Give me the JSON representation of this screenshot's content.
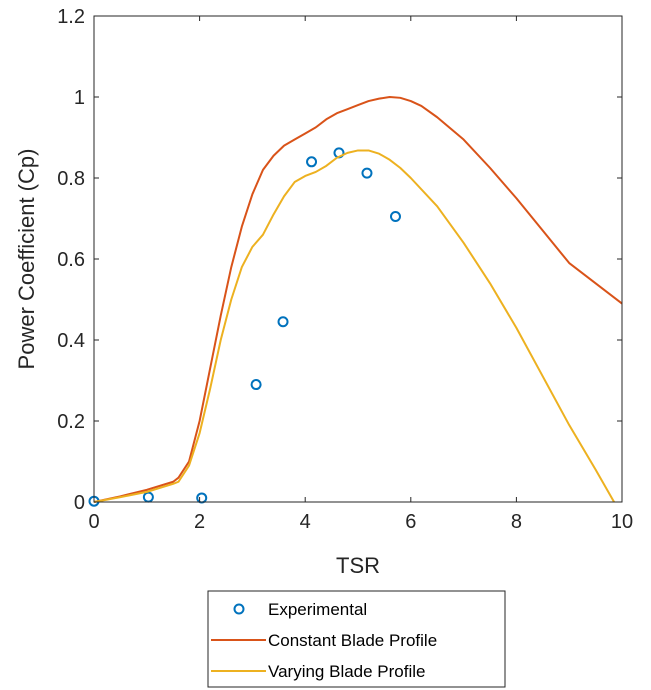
{
  "chart_data": {
    "type": "line",
    "xlabel": "TSR",
    "ylabel": "Power Coefficient (Cp)",
    "xlim": [
      0,
      10
    ],
    "ylim": [
      0,
      1.2
    ],
    "xticks": [
      "0",
      "2",
      "4",
      "6",
      "8",
      "10"
    ],
    "yticks": [
      "0",
      "0.2",
      "0.4",
      "0.6",
      "0.8",
      "1",
      "1.2"
    ],
    "grid": false,
    "legend_position": "bottom-outside",
    "series": [
      {
        "name": "Experimental",
        "style": "markers",
        "color": "#0072BD",
        "x": [
          0,
          1.03,
          2.04,
          3.07,
          3.58,
          4.12,
          4.64,
          5.17,
          5.71
        ],
        "y": [
          0.002,
          0.012,
          0.01,
          0.29,
          0.445,
          0.84,
          0.862,
          0.812,
          0.705
        ]
      },
      {
        "name": "Constant Blade Profile",
        "style": "line",
        "color": "#D95319",
        "x": [
          0,
          0.5,
          1.0,
          1.5,
          1.6,
          1.8,
          2.0,
          2.2,
          2.4,
          2.6,
          2.8,
          3.0,
          3.2,
          3.4,
          3.6,
          3.8,
          4.0,
          4.2,
          4.4,
          4.6,
          4.8,
          5.0,
          5.2,
          5.4,
          5.6,
          5.8,
          6.0,
          6.2,
          6.5,
          7.0,
          7.5,
          8.0,
          8.5,
          9.0,
          9.5,
          10.0
        ],
        "y": [
          0,
          0.014,
          0.03,
          0.05,
          0.06,
          0.1,
          0.2,
          0.33,
          0.46,
          0.58,
          0.68,
          0.76,
          0.82,
          0.855,
          0.88,
          0.895,
          0.91,
          0.925,
          0.945,
          0.96,
          0.97,
          0.98,
          0.99,
          0.996,
          1.0,
          0.998,
          0.99,
          0.978,
          0.95,
          0.895,
          0.825,
          0.75,
          0.67,
          0.59,
          0.54,
          0.49
        ]
      },
      {
        "name": "Varying Blade Profile",
        "style": "line",
        "color": "#EDB120",
        "x": [
          0,
          0.5,
          1.0,
          1.5,
          1.6,
          1.8,
          2.0,
          2.2,
          2.4,
          2.6,
          2.8,
          3.0,
          3.2,
          3.4,
          3.6,
          3.8,
          4.0,
          4.2,
          4.4,
          4.6,
          4.8,
          5.0,
          5.2,
          5.4,
          5.6,
          5.8,
          6.0,
          6.5,
          7.0,
          7.5,
          8.0,
          8.5,
          9.0,
          9.5,
          9.85
        ],
        "y": [
          0,
          0.012,
          0.025,
          0.045,
          0.05,
          0.09,
          0.17,
          0.28,
          0.4,
          0.5,
          0.58,
          0.63,
          0.66,
          0.71,
          0.755,
          0.79,
          0.805,
          0.815,
          0.83,
          0.85,
          0.862,
          0.868,
          0.868,
          0.86,
          0.845,
          0.825,
          0.8,
          0.73,
          0.64,
          0.54,
          0.43,
          0.31,
          0.19,
          0.08,
          0.0
        ]
      }
    ]
  }
}
